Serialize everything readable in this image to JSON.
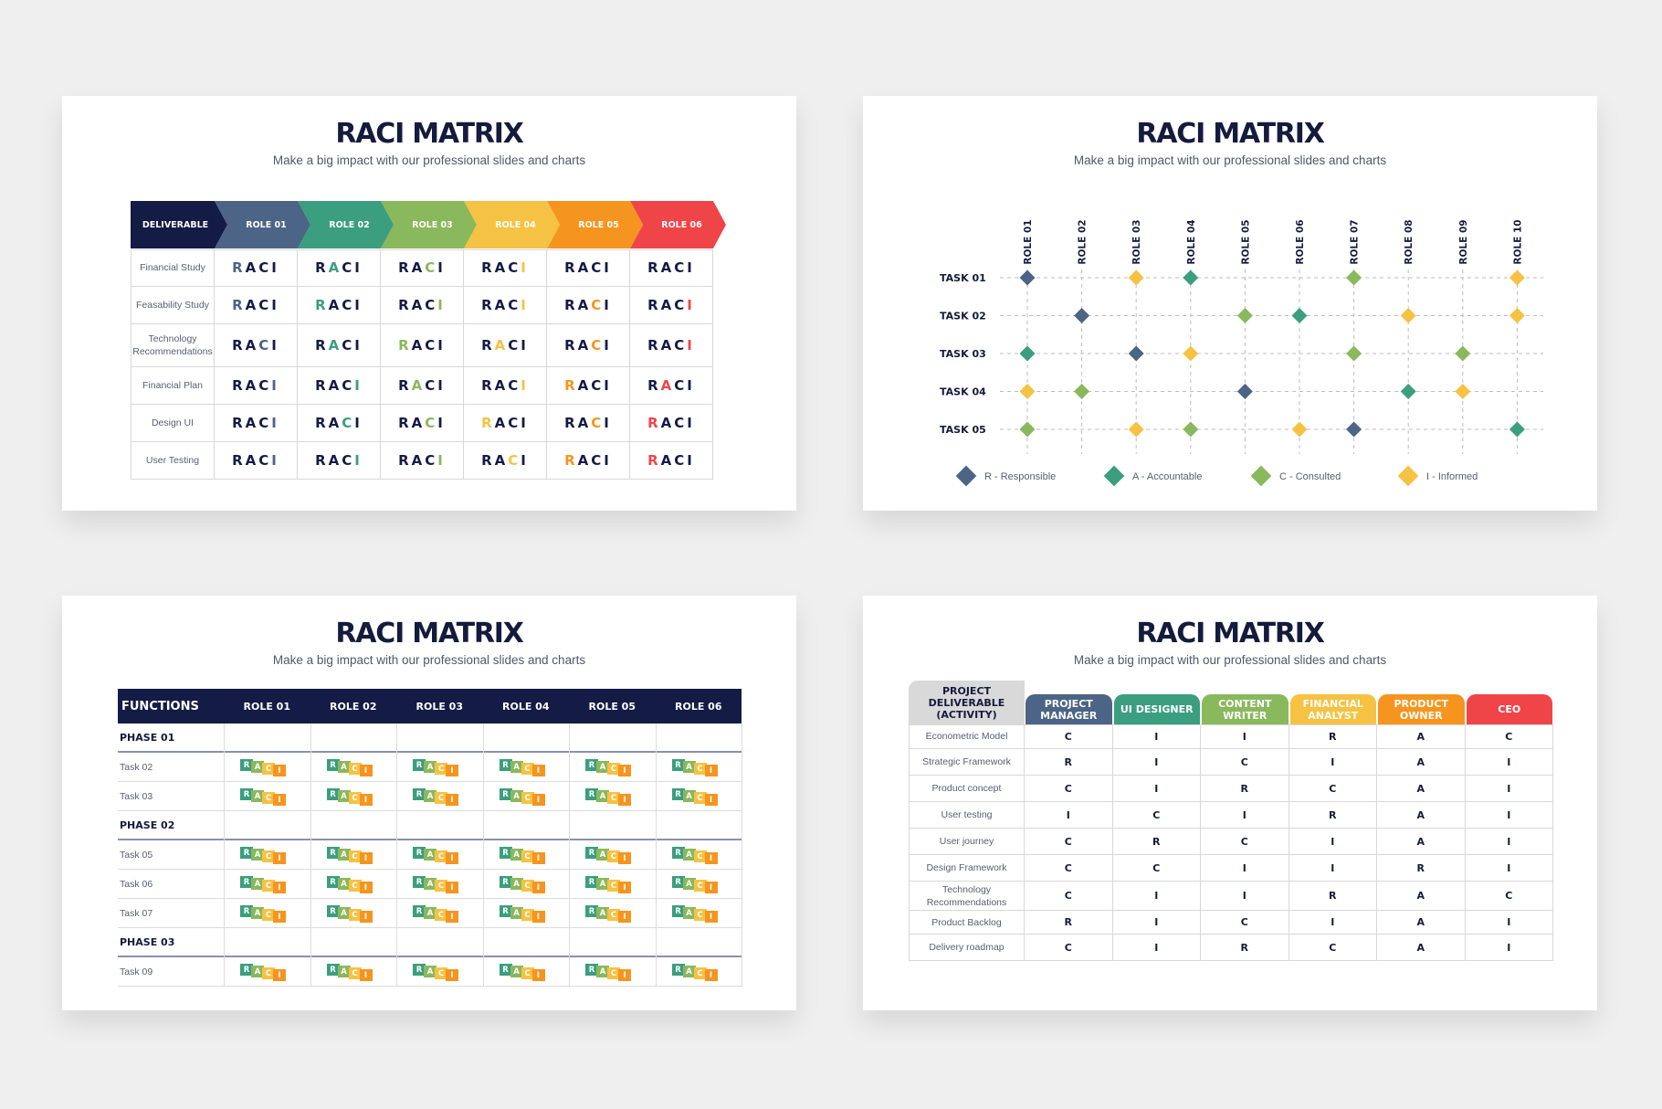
{
  "common": {
    "title": "RACI MATRIX",
    "subtitle": "Make a big impact with our professional slides and charts"
  },
  "colors": {
    "navy": "#141b45",
    "slate": "#4c6485",
    "teal": "#3b9e7f",
    "green": "#8ab85c",
    "yellow": "#f6c244",
    "orange": "#f5951f",
    "red": "#ef4549"
  },
  "slide1": {
    "header_deliverable": "DELIVERABLE",
    "roles": [
      "ROLE 01",
      "ROLE 02",
      "ROLE 03",
      "ROLE 04",
      "ROLE 05",
      "ROLE 06"
    ],
    "role_colors": [
      "#4c6485",
      "#3b9e7f",
      "#8ab85c",
      "#f6c244",
      "#f5951f",
      "#ef4549"
    ],
    "letters": [
      "R",
      "A",
      "C",
      "I"
    ],
    "rows": [
      {
        "label": "Financial Study",
        "highlight": [
          0,
          1,
          2,
          3,
          4,
          5
        ]
      },
      {
        "label": "Feasability Study",
        "highlight": [
          0,
          0,
          3,
          3,
          2,
          3
        ]
      },
      {
        "label": "Technology Recommendations",
        "highlight": [
          2,
          1,
          0,
          1,
          2,
          3
        ]
      },
      {
        "label": "Financial Plan",
        "highlight": [
          3,
          3,
          1,
          3,
          0,
          1
        ]
      },
      {
        "label": "Design UI",
        "highlight": [
          3,
          2,
          2,
          0,
          2,
          0
        ]
      },
      {
        "label": "User Testing",
        "highlight": [
          3,
          3,
          3,
          2,
          0,
          0
        ]
      }
    ]
  },
  "slide2": {
    "roles": [
      "ROLE 01",
      "ROLE 02",
      "ROLE 03",
      "ROLE 04",
      "ROLE 05",
      "ROLE 06",
      "ROLE 07",
      "ROLE 08",
      "ROLE 09",
      "ROLE 10"
    ],
    "tasks": [
      "TASK 01",
      "TASK 02",
      "TASK 03",
      "TASK 04",
      "TASK 05"
    ],
    "marks": [
      [
        0,
        "R"
      ],
      [
        2,
        "I"
      ],
      [
        3,
        "A"
      ],
      [
        6,
        "C"
      ],
      [
        9,
        "I"
      ],
      [
        1,
        "R"
      ],
      [
        4,
        "C"
      ],
      [
        5,
        "A"
      ],
      [
        7,
        "I"
      ],
      [
        9,
        "I"
      ],
      [
        0,
        "A"
      ],
      [
        2,
        "R"
      ],
      [
        3,
        "I"
      ],
      [
        6,
        "C"
      ],
      [
        8,
        "C"
      ],
      [
        0,
        "I"
      ],
      [
        1,
        "C"
      ],
      [
        4,
        "R"
      ],
      [
        7,
        "A"
      ],
      [
        8,
        "I"
      ],
      [
        0,
        "C"
      ],
      [
        2,
        "I"
      ],
      [
        3,
        "C"
      ],
      [
        5,
        "I"
      ],
      [
        6,
        "R"
      ],
      [
        9,
        "A"
      ]
    ],
    "marks_rows": [
      5,
      5,
      5,
      5,
      6
    ],
    "legend": [
      {
        "key": "R",
        "label": "R - Responsible",
        "color": "#4c6485"
      },
      {
        "key": "A",
        "label": "A - Accountable",
        "color": "#3b9e7f"
      },
      {
        "key": "C",
        "label": "C - Consulted",
        "color": "#8ab85c"
      },
      {
        "key": "I",
        "label": "I - Informed",
        "color": "#f6c244"
      }
    ]
  },
  "slide3": {
    "header_functions": "FUNCTIONS",
    "roles": [
      "ROLE 01",
      "ROLE 02",
      "ROLE 03",
      "ROLE 04",
      "ROLE 05",
      "ROLE 06"
    ],
    "letters": [
      "R",
      "A",
      "C",
      "I"
    ],
    "rows": [
      {
        "label": "PHASE 01",
        "phase": true
      },
      {
        "label": "Task 02",
        "phase": false
      },
      {
        "label": "Task 03",
        "phase": false
      },
      {
        "label": "PHASE 02",
        "phase": true
      },
      {
        "label": "Task 05",
        "phase": false
      },
      {
        "label": "Task 06",
        "phase": false
      },
      {
        "label": "Task 07",
        "phase": false
      },
      {
        "label": "PHASE 03",
        "phase": true
      },
      {
        "label": "Task 09",
        "phase": false
      }
    ]
  },
  "slide4": {
    "header_deliverable": "PROJECT DELIVERABLE (ACTIVITY)",
    "roles": [
      "PROJECT MANAGER",
      "UI DESIGNER",
      "CONTENT WRITER",
      "FINANCIAL ANALYST",
      "PRODUCT OWNER",
      "CEO"
    ],
    "role_colors": [
      "#4c6485",
      "#3b9e7f",
      "#8ab85c",
      "#f6c244",
      "#f5951f",
      "#ef4549"
    ],
    "rows": [
      {
        "label": "Econometric Model",
        "values": [
          "C",
          "I",
          "I",
          "R",
          "A",
          "C"
        ]
      },
      {
        "label": "Strategic Framework",
        "values": [
          "R",
          "I",
          "C",
          "I",
          "A",
          "I"
        ]
      },
      {
        "label": "Product concept",
        "values": [
          "C",
          "I",
          "R",
          "C",
          "A",
          "I"
        ]
      },
      {
        "label": "User testing",
        "values": [
          "I",
          "C",
          "I",
          "R",
          "A",
          "I"
        ]
      },
      {
        "label": "User journey",
        "values": [
          "C",
          "R",
          "C",
          "I",
          "A",
          "I"
        ]
      },
      {
        "label": "Design Framework",
        "values": [
          "C",
          "C",
          "I",
          "I",
          "R",
          "I"
        ]
      },
      {
        "label": "Technology Recommendations",
        "values": [
          "C",
          "I",
          "I",
          "R",
          "A",
          "C"
        ]
      },
      {
        "label": "Product Backlog",
        "values": [
          "R",
          "I",
          "C",
          "I",
          "A",
          "I"
        ]
      },
      {
        "label": "Delivery roadmap",
        "values": [
          "C",
          "I",
          "R",
          "C",
          "A",
          "I"
        ]
      }
    ]
  }
}
